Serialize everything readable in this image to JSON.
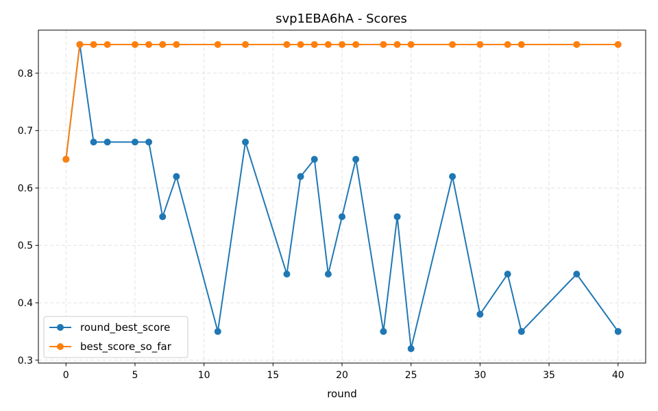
{
  "chart_data": {
    "type": "line",
    "title": "svp1EBA6hA - Scores",
    "xlabel": "round",
    "ylabel": "",
    "xlim": [
      -2,
      42
    ],
    "ylim": [
      0.295,
      0.875
    ],
    "xticks": [
      0,
      5,
      10,
      15,
      20,
      25,
      30,
      35,
      40
    ],
    "yticks": [
      0.3,
      0.4,
      0.5,
      0.6,
      0.7,
      0.8
    ],
    "xtick_labels": [
      "0",
      "5",
      "10",
      "15",
      "20",
      "25",
      "30",
      "35",
      "40"
    ],
    "ytick_labels": [
      "0.3",
      "0.4",
      "0.5",
      "0.6",
      "0.7",
      "0.8"
    ],
    "grid": true,
    "legend_position": "bottom-left",
    "x": [
      0,
      1,
      2,
      3,
      5,
      6,
      7,
      8,
      11,
      13,
      16,
      17,
      18,
      19,
      20,
      21,
      23,
      24,
      25,
      28,
      30,
      32,
      33,
      37,
      40
    ],
    "series": [
      {
        "name": "round_best_score",
        "color": "#1f77b4",
        "values": [
          0.65,
          0.85,
          0.68,
          0.68,
          0.68,
          0.68,
          0.55,
          0.62,
          0.35,
          0.68,
          0.45,
          0.62,
          0.65,
          0.45,
          0.55,
          0.65,
          0.35,
          0.55,
          0.32,
          0.62,
          0.38,
          0.45,
          0.35,
          0.45,
          0.35
        ]
      },
      {
        "name": "best_score_so_far",
        "color": "#ff7f0e",
        "values": [
          0.65,
          0.85,
          0.85,
          0.85,
          0.85,
          0.85,
          0.85,
          0.85,
          0.85,
          0.85,
          0.85,
          0.85,
          0.85,
          0.85,
          0.85,
          0.85,
          0.85,
          0.85,
          0.85,
          0.85,
          0.85,
          0.85,
          0.85,
          0.85,
          0.85
        ]
      }
    ]
  }
}
